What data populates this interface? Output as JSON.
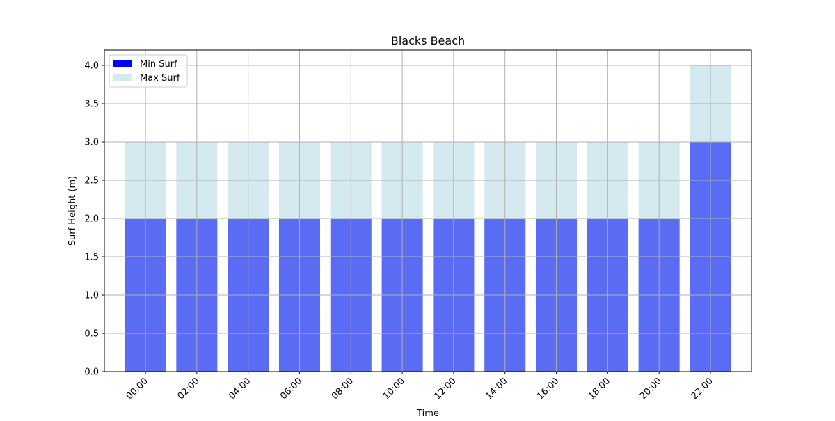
{
  "chart_data": {
    "type": "bar",
    "title": "Blacks Beach",
    "xlabel": "Time",
    "ylabel": "Surf Height (m)",
    "categories": [
      "00:00",
      "02:00",
      "04:00",
      "06:00",
      "08:00",
      "10:00",
      "12:00",
      "14:00",
      "16:00",
      "18:00",
      "20:00",
      "22:00"
    ],
    "series": [
      {
        "name": "Min Surf",
        "values": [
          2,
          2,
          2,
          2,
          2,
          2,
          2,
          2,
          2,
          2,
          2,
          3
        ],
        "color": "#5a6cf4",
        "legend_color": "#0000ff"
      },
      {
        "name": "Max Surf",
        "values": [
          3,
          3,
          3,
          3,
          3,
          3,
          3,
          3,
          3,
          3,
          3,
          4
        ],
        "color": "#d4e9f0",
        "legend_color": "#d4e9f0"
      }
    ],
    "ylim": [
      0,
      4.2
    ],
    "yticks": [
      "0.0",
      "0.5",
      "1.0",
      "1.5",
      "2.0",
      "2.5",
      "3.0",
      "3.5",
      "4.0"
    ],
    "grid": true,
    "legend": "top-left"
  }
}
